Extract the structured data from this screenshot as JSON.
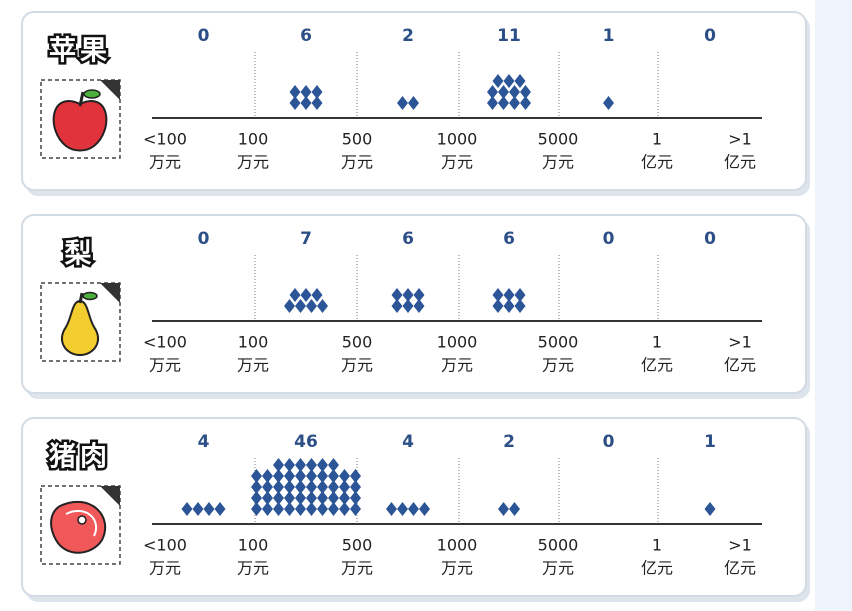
{
  "chart_data": [
    {
      "type": "dot",
      "title": "苹果",
      "icon": "apple",
      "color": "#2b5597",
      "values": [
        0,
        6,
        2,
        11,
        1,
        0
      ],
      "x_labels": [
        [
          "<100",
          "万元"
        ],
        [
          "100",
          "万元"
        ],
        [
          "500",
          "万元"
        ],
        [
          "1000",
          "万元"
        ],
        [
          "5000",
          "万元"
        ],
        [
          "1",
          "亿元"
        ],
        [
          ">1",
          "亿元"
        ]
      ]
    },
    {
      "type": "dot",
      "title": "梨",
      "icon": "pear",
      "color": "#2b5597",
      "values": [
        0,
        7,
        6,
        6,
        0,
        0
      ],
      "x_labels": [
        [
          "<100",
          "万元"
        ],
        [
          "100",
          "万元"
        ],
        [
          "500",
          "万元"
        ],
        [
          "1000",
          "万元"
        ],
        [
          "5000",
          "万元"
        ],
        [
          "1",
          "亿元"
        ],
        [
          ">1",
          "亿元"
        ]
      ]
    },
    {
      "type": "dot",
      "title": "猪肉",
      "icon": "meat",
      "color": "#2b5597",
      "values": [
        4,
        46,
        4,
        2,
        0,
        1
      ],
      "x_labels": [
        [
          "<100",
          "万元"
        ],
        [
          "100",
          "万元"
        ],
        [
          "500",
          "万元"
        ],
        [
          "1000",
          "万元"
        ],
        [
          "5000",
          "万元"
        ],
        [
          "1",
          "亿元"
        ],
        [
          ">1",
          "亿元"
        ]
      ]
    }
  ]
}
